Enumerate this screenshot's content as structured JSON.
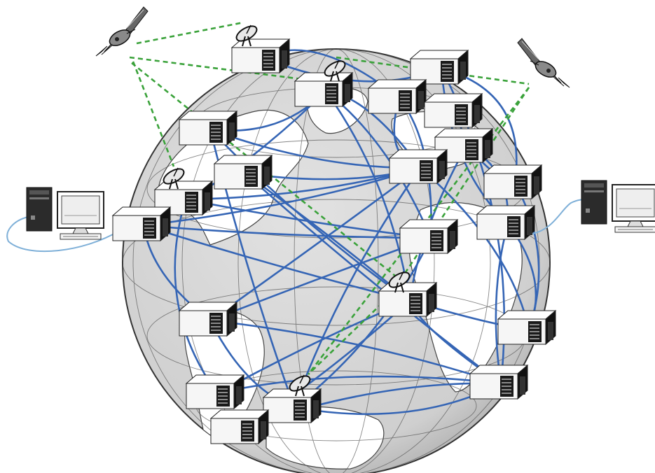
{
  "diagram": {
    "type": "network-illustration",
    "text": ""
  },
  "colors": {
    "globe_fill": "#d3d3d3",
    "land_fill": "#ffffff",
    "grid": "#555555",
    "terrestrial_link": "#3565b5",
    "satellite_link": "#3aa23a",
    "terminal_cable": "#7fb0d8",
    "server_body": "#f6f6f6",
    "server_dark": "#1a1a1a",
    "outline": "#222222"
  },
  "legend": []
}
